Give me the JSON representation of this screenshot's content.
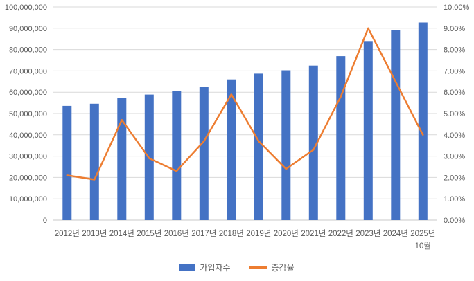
{
  "chart_data": {
    "type": "combo-bar-line",
    "title": "",
    "categories": [
      {
        "label": "2012년"
      },
      {
        "label": "2013년"
      },
      {
        "label": "2014년"
      },
      {
        "label": "2015년"
      },
      {
        "label": "2016년"
      },
      {
        "label": "2017년"
      },
      {
        "label": "2018년"
      },
      {
        "label": "2019년"
      },
      {
        "label": "2020년"
      },
      {
        "label": "2021년"
      },
      {
        "label": "2022년"
      },
      {
        "label": "2023년"
      },
      {
        "label": "2024년"
      },
      {
        "label": "2025년",
        "sublabel": "10월"
      }
    ],
    "series": [
      {
        "name": "가입자수",
        "type": "bar",
        "axis": "left",
        "color": "#4472C4",
        "values": [
          53600000,
          54600000,
          57200000,
          58900000,
          60400000,
          62600000,
          66000000,
          68700000,
          70300000,
          72500000,
          76900000,
          84000000,
          89200000,
          92700000
        ]
      },
      {
        "name": "증감율",
        "type": "line",
        "axis": "right",
        "color": "#ED7D31",
        "values": [
          2.1,
          1.9,
          4.7,
          2.9,
          2.3,
          3.7,
          5.9,
          3.7,
          2.4,
          3.3,
          5.8,
          9.0,
          6.5,
          4.0
        ]
      }
    ],
    "axes": {
      "left": {
        "min": 0,
        "max": 100000000,
        "tick_labels": [
          "100,000,000",
          "90,000,000",
          "80,000,000",
          "70,000,000",
          "60,000,000",
          "50,000,000",
          "40,000,000",
          "30,000,000",
          "20,000,000",
          "10,000,000",
          "0"
        ]
      },
      "right": {
        "min": 0,
        "max": 10,
        "tick_labels": [
          "10.00%",
          "9.00%",
          "8.00%",
          "7.00%",
          "6.00%",
          "5.00%",
          "4.00%",
          "3.00%",
          "2.00%",
          "1.00%",
          "0.00%"
        ]
      }
    },
    "legend": {
      "position": "bottom",
      "entries": [
        "가입자수",
        "증감율"
      ]
    },
    "grid": true,
    "colors": {
      "background": "#FFFFFF",
      "grid": "#D9D9D9",
      "axis_line": "#C8C8C8",
      "axis_text": "#595959",
      "bar": "#4472C4",
      "line": "#ED7D31"
    }
  }
}
